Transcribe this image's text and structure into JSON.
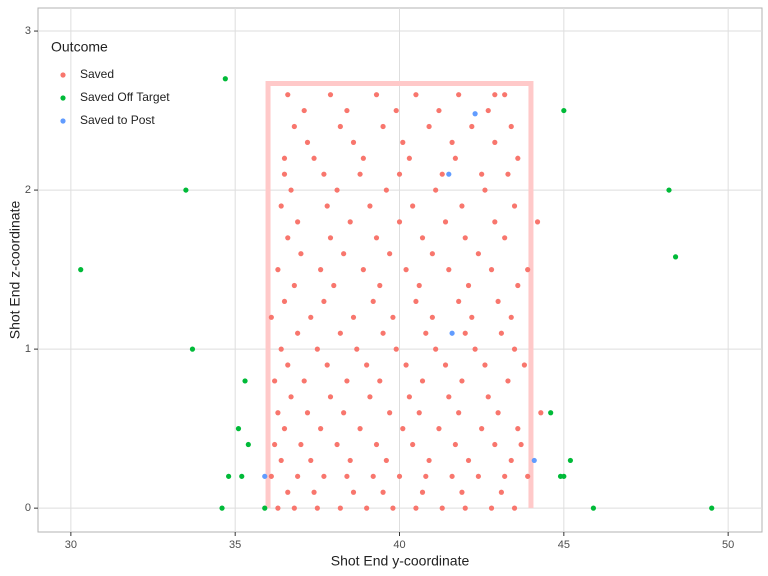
{
  "chart_data": {
    "type": "scatter",
    "x_label": "Shot End y-coordinate",
    "y_label": "Shot End z-coordinate",
    "legend_title": "Outcome",
    "legend_position": "top-left",
    "xlim": [
      29.0,
      51.03
    ],
    "ylim": [
      -0.15,
      3.145
    ],
    "xticks": [
      30,
      35,
      40,
      45,
      50
    ],
    "yticks": [
      0,
      1,
      2,
      3
    ],
    "grid": true,
    "goal_frame": {
      "x": [
        36,
        44
      ],
      "y": [
        0,
        2.67
      ],
      "color": "#ffc9c9"
    },
    "series": [
      {
        "name": "Saved",
        "color": "#F8766D",
        "x": [
          36.3,
          36.8,
          37.5,
          38.2,
          39.0,
          39.8,
          40.5,
          41.3,
          42.0,
          42.8,
          43.5,
          36.6,
          37.4,
          38.6,
          39.5,
          40.7,
          41.9,
          43.1,
          36.1,
          36.9,
          37.7,
          38.4,
          39.2,
          40.0,
          40.8,
          41.6,
          42.4,
          43.2,
          43.9,
          36.4,
          37.3,
          38.5,
          39.6,
          40.9,
          42.1,
          43.4,
          36.2,
          37.0,
          38.1,
          39.3,
          40.4,
          41.7,
          42.9,
          43.7,
          36.5,
          37.6,
          38.8,
          40.1,
          41.2,
          42.5,
          43.6,
          36.3,
          37.2,
          38.3,
          39.7,
          40.6,
          41.8,
          43.0,
          44.3,
          36.7,
          37.9,
          39.1,
          40.3,
          41.5,
          42.7,
          36.2,
          37.1,
          38.4,
          39.4,
          40.7,
          41.9,
          43.3,
          36.6,
          37.8,
          39.0,
          40.2,
          41.4,
          42.6,
          43.8,
          36.4,
          37.5,
          38.7,
          39.9,
          41.1,
          42.3,
          43.5,
          36.9,
          38.2,
          39.5,
          40.8,
          42.0,
          43.1,
          36.1,
          37.3,
          38.6,
          39.8,
          41.0,
          42.2,
          43.4,
          36.5,
          37.7,
          39.2,
          40.5,
          41.8,
          43.0,
          36.8,
          38.0,
          39.4,
          40.6,
          42.1,
          43.6,
          36.3,
          37.6,
          38.9,
          40.2,
          41.5,
          42.8,
          43.9,
          37.0,
          38.3,
          39.7,
          41.0,
          42.4,
          36.6,
          37.9,
          39.3,
          40.7,
          42.0,
          43.2,
          36.9,
          38.5,
          40.0,
          41.4,
          42.9,
          44.2,
          36.4,
          37.8,
          39.1,
          40.4,
          41.9,
          43.5,
          36.7,
          38.1,
          39.6,
          41.1,
          42.6,
          36.5,
          37.7,
          38.8,
          40.0,
          41.3,
          42.5,
          43.3,
          36.5,
          37.4,
          38.9,
          40.3,
          41.7,
          43.6,
          37.2,
          38.6,
          40.1,
          41.6,
          42.9,
          36.8,
          38.2,
          39.5,
          40.9,
          42.2,
          43.4,
          37.1,
          38.4,
          39.9,
          41.2,
          42.7,
          36.6,
          37.9,
          39.3,
          40.5,
          41.8,
          42.9,
          43.2
        ],
        "values": [
          0,
          0,
          0,
          0,
          0,
          0,
          0,
          0,
          0,
          0,
          0,
          0.1,
          0.1,
          0.1,
          0.1,
          0.1,
          0.1,
          0.1,
          0.2,
          0.2,
          0.2,
          0.2,
          0.2,
          0.2,
          0.2,
          0.2,
          0.2,
          0.2,
          0.2,
          0.3,
          0.3,
          0.3,
          0.3,
          0.3,
          0.3,
          0.3,
          0.4,
          0.4,
          0.4,
          0.4,
          0.4,
          0.4,
          0.4,
          0.4,
          0.5,
          0.5,
          0.5,
          0.5,
          0.5,
          0.5,
          0.5,
          0.6,
          0.6,
          0.6,
          0.6,
          0.6,
          0.6,
          0.6,
          0.6,
          0.7,
          0.7,
          0.7,
          0.7,
          0.7,
          0.7,
          0.8,
          0.8,
          0.8,
          0.8,
          0.8,
          0.8,
          0.8,
          0.9,
          0.9,
          0.9,
          0.9,
          0.9,
          0.9,
          0.9,
          1.0,
          1.0,
          1.0,
          1.0,
          1.0,
          1.0,
          1.0,
          1.1,
          1.1,
          1.1,
          1.1,
          1.1,
          1.1,
          1.2,
          1.2,
          1.2,
          1.2,
          1.2,
          1.2,
          1.2,
          1.3,
          1.3,
          1.3,
          1.3,
          1.3,
          1.3,
          1.4,
          1.4,
          1.4,
          1.4,
          1.4,
          1.4,
          1.5,
          1.5,
          1.5,
          1.5,
          1.5,
          1.5,
          1.5,
          1.6,
          1.6,
          1.6,
          1.6,
          1.6,
          1.7,
          1.7,
          1.7,
          1.7,
          1.7,
          1.7,
          1.8,
          1.8,
          1.8,
          1.8,
          1.8,
          1.8,
          1.9,
          1.9,
          1.9,
          1.9,
          1.9,
          1.9,
          2.0,
          2.0,
          2.0,
          2.0,
          2.0,
          2.1,
          2.1,
          2.1,
          2.1,
          2.1,
          2.1,
          2.1,
          2.2,
          2.2,
          2.2,
          2.2,
          2.2,
          2.2,
          2.3,
          2.3,
          2.3,
          2.3,
          2.3,
          2.4,
          2.4,
          2.4,
          2.4,
          2.4,
          2.4,
          2.5,
          2.5,
          2.5,
          2.5,
          2.5,
          2.6,
          2.6,
          2.6,
          2.6,
          2.6,
          2.6,
          2.6
        ]
      },
      {
        "name": "Saved Off Target",
        "color": "#00BA38",
        "x": [
          34.7,
          33.5,
          30.3,
          33.7,
          35.3,
          35.1,
          35.4,
          34.8,
          35.2,
          34.6,
          35.9,
          44.6,
          45.0,
          48.2,
          48.4,
          45.2,
          45.0,
          44.9,
          45.9,
          49.5
        ],
        "values": [
          2.7,
          2.0,
          1.5,
          1.0,
          0.8,
          0.5,
          0.4,
          0.2,
          0.2,
          0,
          0,
          0.6,
          2.5,
          2.0,
          1.58,
          0.3,
          0.2,
          0.2,
          0,
          0
        ]
      },
      {
        "name": "Saved to Post",
        "color": "#619CFF",
        "x": [
          42.3,
          41.5,
          41.6,
          44.1,
          35.9
        ],
        "values": [
          2.48,
          2.1,
          1.1,
          0.3,
          0.2
        ]
      }
    ]
  }
}
